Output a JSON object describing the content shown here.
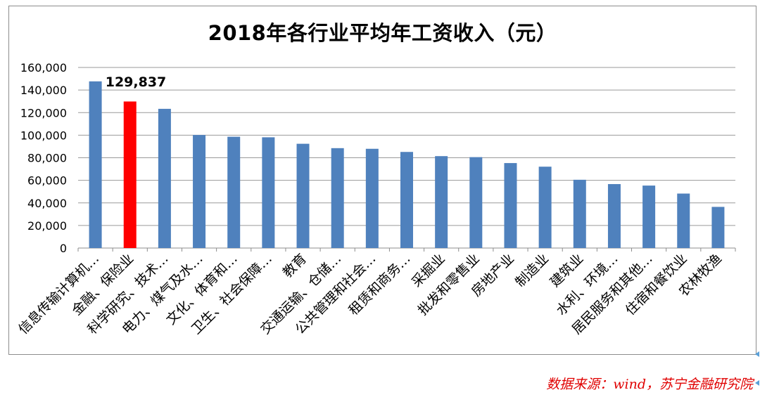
{
  "chart_data": {
    "type": "bar",
    "title": "2018年各行业平均年工资收入（元）",
    "categories": [
      "信息传输计算机…",
      "金融、保险业",
      "科学研究、技术…",
      "电力、煤气及水…",
      "文化、体育和…",
      "卫生、社会保障…",
      "教育",
      "交通运输、仓储…",
      "公共管理和社会…",
      "租赁和商务…",
      "采掘业",
      "批发和零售业",
      "房地产业",
      "制造业",
      "建筑业",
      "水利、环境…",
      "居民服务和其他…",
      "住宿和餐饮业",
      "农林牧渔"
    ],
    "values": [
      147678,
      129837,
      123343,
      100162,
      98621,
      98118,
      92383,
      88508,
      87932,
      85147,
      81429,
      80551,
      75281,
      72088,
      60501,
      56670,
      55343,
      48260,
      36466
    ],
    "highlight_index": 1,
    "highlight_label": "129,837",
    "y_ticks": [
      "0",
      "20,000",
      "40,000",
      "60,000",
      "80,000",
      "100,000",
      "120,000",
      "140,000",
      "160,000"
    ],
    "ylim": [
      0,
      160000
    ],
    "grid": true,
    "bar_color": "#4f81bd",
    "highlight_color": "#ff0000"
  },
  "source": "数据来源：wind，苏宁金融研究院"
}
